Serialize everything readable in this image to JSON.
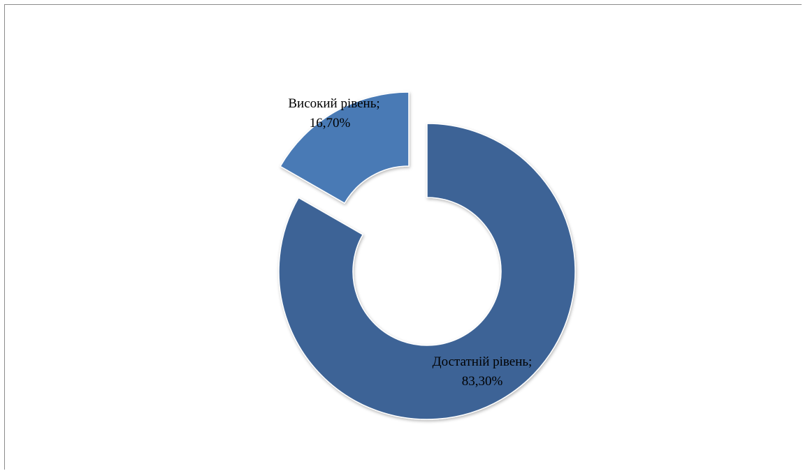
{
  "chart_data": {
    "type": "pie",
    "variant": "doughnut-exploded",
    "title": "",
    "series": [
      {
        "categories": [
          "Достатній рівень",
          "Високий рівень"
        ],
        "values": [
          83.3,
          16.7
        ],
        "value_labels": [
          "83,30%",
          "16,70%"
        ],
        "colors": [
          "#3d6496",
          "#4a7ab5"
        ]
      }
    ],
    "labels": {
      "dostatnii": {
        "name": "Достатній рівень;",
        "value": "83,30%"
      },
      "vysokyi": {
        "name": "Високий рівень;",
        "value": "16,70%"
      }
    },
    "legend": "none"
  }
}
